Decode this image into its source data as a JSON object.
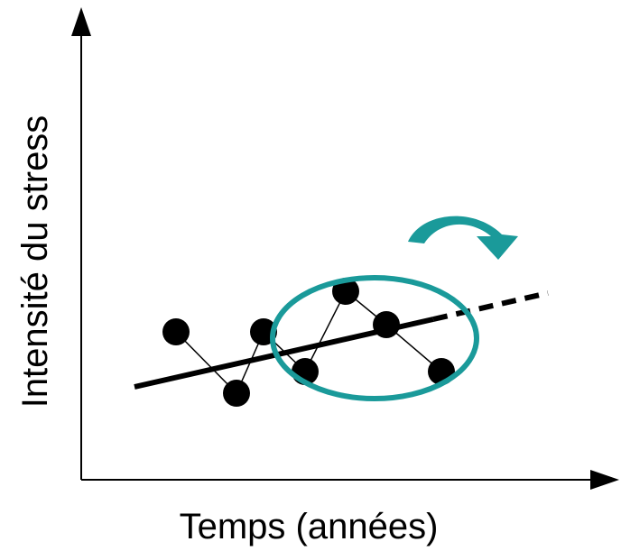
{
  "diagram": {
    "y_axis_label": "Intensité du stress",
    "x_axis_label": "Temps (années)",
    "colors": {
      "ink": "#000000",
      "accent": "#1a9a9a",
      "background": "#ffffff"
    },
    "elements": {
      "observations": "black dots connected by thin lines",
      "trend": "thick black line continuing as a dashed projection",
      "highlight": "teal ellipse around recent observations",
      "arrow": "curved teal arrow"
    }
  }
}
